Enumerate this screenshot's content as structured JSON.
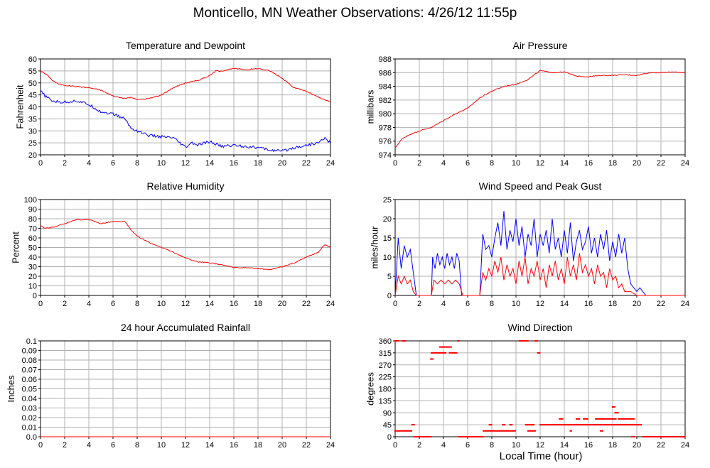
{
  "page": {
    "title": "Monticello, MN Weather Observations: 4/26/12 11:55p",
    "xlabel": "Local Time (hour)"
  },
  "chart_data": [
    {
      "id": "temp",
      "type": "line",
      "title": "Temperature and Dewpoint",
      "ylabel": "Fahrenheit",
      "xlim": [
        0,
        24
      ],
      "ylim": [
        20,
        60
      ],
      "xticks": [
        0,
        2,
        4,
        6,
        8,
        10,
        12,
        14,
        16,
        18,
        20,
        22,
        24
      ],
      "yticks": [
        20,
        25,
        30,
        35,
        40,
        45,
        50,
        55,
        60
      ],
      "grid": true,
      "series": [
        {
          "color": "#ff0000",
          "jitter": 0.4,
          "x": [
            0,
            0.5,
            1,
            1.5,
            2,
            3,
            4,
            5,
            6,
            7,
            7.5,
            8,
            9,
            10,
            11,
            12,
            13,
            14,
            14.5,
            15,
            16,
            17,
            18,
            19,
            20,
            21,
            22,
            23,
            24
          ],
          "y": [
            55,
            53.5,
            51,
            49.5,
            49,
            48.5,
            48,
            47,
            44.5,
            43.5,
            44,
            43,
            43.5,
            45,
            48,
            50,
            51,
            53,
            55,
            55,
            56,
            55.5,
            56,
            55,
            52,
            48,
            46.5,
            44,
            42
          ]
        },
        {
          "color": "#0000ff",
          "jitter": 1.2,
          "x": [
            0,
            0.5,
            1,
            1.5,
            2,
            3,
            4,
            5,
            6,
            7,
            7.5,
            8,
            9,
            10,
            11,
            12,
            12.5,
            13,
            14,
            15,
            16,
            17,
            18,
            19,
            20,
            21,
            22,
            23,
            23.5,
            24
          ],
          "y": [
            46.5,
            44,
            42.5,
            42,
            42,
            42.5,
            41,
            38,
            37,
            35,
            31,
            30,
            28,
            27.5,
            27,
            23,
            25,
            24,
            25.5,
            23.5,
            24,
            23.5,
            23,
            22,
            21.5,
            23,
            24,
            25,
            27,
            25
          ]
        }
      ]
    },
    {
      "id": "pressure",
      "type": "line",
      "title": "Air Pressure",
      "ylabel": "millibars",
      "xlim": [
        0,
        24
      ],
      "ylim": [
        974,
        988
      ],
      "xticks": [
        0,
        2,
        4,
        6,
        8,
        10,
        12,
        14,
        16,
        18,
        20,
        22,
        24
      ],
      "yticks": [
        974,
        976,
        978,
        980,
        982,
        984,
        986,
        988
      ],
      "grid": true,
      "series": [
        {
          "color": "#ff0000",
          "jitter": 0.12,
          "x": [
            0,
            0.5,
            1,
            2,
            3,
            4,
            5,
            6,
            7,
            8,
            9,
            10,
            11,
            12,
            13,
            14,
            15,
            16,
            17,
            18,
            19,
            20,
            21,
            22,
            23,
            24
          ],
          "y": [
            975,
            976.2,
            976.8,
            977.5,
            978,
            979,
            980,
            980.8,
            982.3,
            983.3,
            984,
            984.3,
            985,
            986.3,
            986,
            986.1,
            985.5,
            985.4,
            985.6,
            985.6,
            985.7,
            985.6,
            986,
            986,
            986.1,
            986
          ]
        }
      ]
    },
    {
      "id": "humidity",
      "type": "line",
      "title": "Relative Humidity",
      "ylabel": "Percent",
      "xlim": [
        0,
        24
      ],
      "ylim": [
        0,
        100
      ],
      "xticks": [
        0,
        2,
        4,
        6,
        8,
        10,
        12,
        14,
        16,
        18,
        20,
        22,
        24
      ],
      "yticks": [
        0,
        10,
        20,
        30,
        40,
        50,
        60,
        70,
        80,
        90,
        100
      ],
      "grid": true,
      "series": [
        {
          "color": "#ff0000",
          "jitter": 0.8,
          "x": [
            0,
            0.3,
            1,
            2,
            3,
            4,
            5,
            6,
            7,
            7.5,
            8,
            9,
            10,
            11,
            12,
            13,
            14,
            15,
            16,
            17,
            18,
            19,
            20,
            21,
            22,
            23,
            23.5,
            24
          ],
          "y": [
            73,
            70,
            71,
            75,
            79,
            79,
            75,
            77,
            77,
            68,
            62,
            55,
            50,
            45,
            39,
            35,
            34,
            32,
            29,
            29,
            28,
            27,
            30,
            34,
            40,
            45,
            53,
            50
          ]
        }
      ]
    },
    {
      "id": "wind",
      "type": "line",
      "title": "Wind Speed and Peak Gust",
      "ylabel": "miles/hour",
      "xlim": [
        0,
        24
      ],
      "ylim": [
        0,
        25
      ],
      "xticks": [
        0,
        2,
        4,
        6,
        8,
        10,
        12,
        14,
        16,
        18,
        20,
        22,
        24
      ],
      "yticks": [
        0,
        5,
        10,
        15,
        20,
        25
      ],
      "grid": true,
      "series": [
        {
          "color": "#0000ff",
          "x": [
            0,
            0.25,
            0.5,
            0.75,
            1.0,
            1.25,
            1.5,
            1.75,
            2,
            3,
            3.1,
            3.3,
            3.5,
            3.7,
            3.9,
            4.1,
            4.3,
            4.5,
            4.7,
            4.9,
            5.1,
            5.3,
            5.5,
            5.6,
            7,
            7.25,
            7.5,
            7.75,
            8,
            8.25,
            8.5,
            8.75,
            9,
            9.25,
            9.5,
            9.75,
            10,
            10.25,
            10.5,
            10.75,
            11,
            11.25,
            11.5,
            11.75,
            12,
            12.25,
            12.5,
            12.75,
            13,
            13.25,
            13.5,
            13.75,
            14,
            14.25,
            14.5,
            14.75,
            15,
            15.25,
            15.5,
            15.75,
            16,
            16.25,
            16.5,
            16.75,
            17,
            17.25,
            17.5,
            17.75,
            18,
            18.25,
            18.5,
            18.75,
            19,
            19.25,
            19.5,
            19.75,
            20,
            20.25,
            20.5,
            20.75,
            21,
            24
          ],
          "y": [
            0,
            15,
            7,
            13,
            10,
            12,
            6,
            0,
            0,
            0,
            10,
            7,
            11,
            8,
            10,
            7,
            11,
            8,
            10,
            7,
            11,
            9,
            0,
            0,
            0,
            16,
            12,
            13,
            10,
            15,
            19,
            13,
            22,
            12,
            17,
            14,
            20,
            13,
            18,
            10,
            16,
            13,
            20,
            10,
            16,
            13,
            17,
            11,
            20,
            12,
            15,
            10,
            17,
            11,
            19,
            9,
            14,
            17,
            12,
            14,
            18,
            11,
            15,
            10,
            16,
            12,
            17,
            9,
            14,
            10,
            16,
            11,
            15,
            7,
            3,
            2,
            1,
            2,
            1,
            0,
            0,
            0
          ]
        },
        {
          "color": "#ff0000",
          "x": [
            0,
            0.25,
            0.5,
            0.75,
            1.0,
            1.25,
            1.5,
            1.75,
            2,
            3,
            3.2,
            3.5,
            3.8,
            4.1,
            4.4,
            4.7,
            5,
            5.3,
            5.6,
            7,
            7.25,
            7.5,
            7.75,
            8,
            8.25,
            8.5,
            8.75,
            9,
            9.25,
            9.5,
            9.75,
            10,
            10.25,
            10.5,
            10.75,
            11,
            11.25,
            11.5,
            11.75,
            12,
            12.25,
            12.5,
            12.75,
            13,
            13.25,
            13.5,
            13.75,
            14,
            14.25,
            14.5,
            14.75,
            15,
            15.25,
            15.5,
            15.75,
            16,
            16.25,
            16.5,
            16.75,
            17,
            17.25,
            17.5,
            17.75,
            18,
            18.25,
            18.5,
            18.75,
            19,
            19.5,
            20,
            24
          ],
          "y": [
            0,
            5,
            3,
            5,
            3,
            4,
            1,
            0,
            0,
            0,
            4,
            3,
            4,
            3,
            4,
            3,
            4,
            3,
            0,
            0,
            6,
            4,
            7,
            5,
            9,
            6,
            10,
            4,
            8,
            5,
            7,
            3,
            9,
            5,
            10,
            3,
            7,
            5,
            9,
            4,
            7,
            2,
            8,
            5,
            9,
            4,
            7,
            3,
            10,
            5,
            8,
            4,
            11,
            6,
            8,
            5,
            7,
            3,
            8,
            5,
            6,
            2,
            7,
            4,
            5,
            2,
            3,
            1,
            1,
            0,
            0
          ]
        }
      ]
    },
    {
      "id": "rain",
      "type": "line",
      "title": "24 hour Accumulated Rainfall",
      "ylabel": "Inches",
      "xlim": [
        0,
        24
      ],
      "ylim": [
        0,
        0.1
      ],
      "xticks": [
        0,
        2,
        4,
        6,
        8,
        10,
        12,
        14,
        16,
        18,
        20,
        22,
        24
      ],
      "yticks": [
        "0.0",
        "0.01",
        "0.02",
        "0.03",
        "0.04",
        "0.05",
        "0.06",
        "0.07",
        "0.08",
        "0.09",
        "0.1"
      ],
      "grid": true,
      "series": [
        {
          "color": "#ff0000",
          "x": [
            0,
            24
          ],
          "y": [
            0,
            0
          ]
        }
      ]
    },
    {
      "id": "winddir",
      "type": "scatter",
      "title": "Wind Direction",
      "ylabel": "degrees",
      "xlim": [
        0,
        24
      ],
      "ylim": [
        0,
        360
      ],
      "xticks": [
        0,
        2,
        4,
        6,
        8,
        10,
        12,
        14,
        16,
        18,
        20,
        22,
        24
      ],
      "yticks": [
        0,
        45,
        90,
        135,
        180,
        225,
        270,
        315,
        360
      ],
      "grid": true,
      "series": [
        {
          "color": "#ff0000",
          "segments": [
            [
              0,
              0.3,
              360
            ],
            [
              0,
              1.4,
              22
            ],
            [
              0.6,
              0.9,
              360
            ],
            [
              1.4,
              1.6,
              45
            ],
            [
              1.6,
              3.0,
              0
            ],
            [
              2.95,
              3.2,
              292
            ],
            [
              3.0,
              4.2,
              315
            ],
            [
              3.7,
              4.7,
              337
            ],
            [
              4.5,
              5.1,
              315
            ],
            [
              5.2,
              5.3,
              360
            ],
            [
              5.3,
              7.3,
              0
            ],
            [
              7.3,
              10.0,
              22
            ],
            [
              7.8,
              8.0,
              45
            ],
            [
              8.9,
              9.1,
              45
            ],
            [
              9.5,
              9.7,
              45
            ],
            [
              10.3,
              11.0,
              360
            ],
            [
              10.8,
              11.5,
              45
            ],
            [
              11.0,
              11.6,
              22
            ],
            [
              11.6,
              11.8,
              360
            ],
            [
              11.8,
              12.0,
              315
            ],
            [
              12.0,
              19.0,
              45
            ],
            [
              13.6,
              13.9,
              67
            ],
            [
              14.5,
              14.6,
              22
            ],
            [
              15.0,
              15.3,
              67
            ],
            [
              15.6,
              16.0,
              67
            ],
            [
              16.6,
              17.5,
              67
            ],
            [
              17.0,
              17.2,
              22
            ],
            [
              17.5,
              18.3,
              67
            ],
            [
              18.0,
              18.2,
              112
            ],
            [
              18.2,
              18.5,
              90
            ],
            [
              18.5,
              19.8,
              67
            ],
            [
              19.0,
              20.4,
              45
            ],
            [
              19.6,
              19.8,
              0
            ],
            [
              20.5,
              24.0,
              0
            ]
          ]
        }
      ]
    }
  ]
}
